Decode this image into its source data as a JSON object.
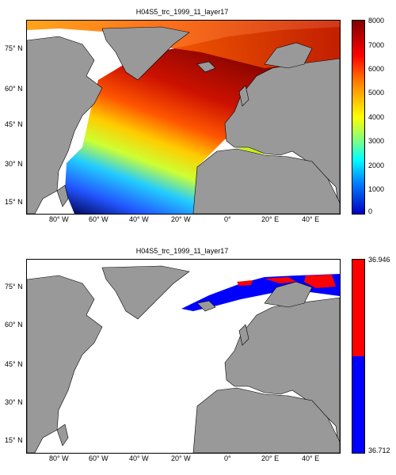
{
  "panels": [
    {
      "title": "H04S5_trc_1999_11_layer17",
      "lat_ticks": [
        "75° N",
        "60° N",
        "45° N",
        "30° N",
        "15° N"
      ],
      "lon_ticks": [
        "80° W",
        "60° W",
        "40° W",
        "20° W",
        "0°",
        "20° E",
        "40° E"
      ],
      "colorbar": {
        "type": "jet",
        "ticks": [
          "8000",
          "7000",
          "6000",
          "5000",
          "4000",
          "3000",
          "2000",
          "1000",
          "0"
        ],
        "range": [
          0,
          8000
        ]
      }
    },
    {
      "title": "H04S5_trc_1999_11_layer17",
      "lat_ticks": [
        "75° N",
        "60° N",
        "45° N",
        "30° N",
        "15° N"
      ],
      "lon_ticks": [
        "80° W",
        "60° W",
        "40° W",
        "20° W",
        "0°",
        "20° E",
        "40° E"
      ],
      "colorbar": {
        "type": "two-color",
        "ticks": [
          "36.946",
          "36.712"
        ],
        "colors": [
          "#ff0000",
          "#0000ff"
        ]
      }
    }
  ],
  "colors": {
    "land": "#999999",
    "ocean_nodata": "#ffffff"
  }
}
